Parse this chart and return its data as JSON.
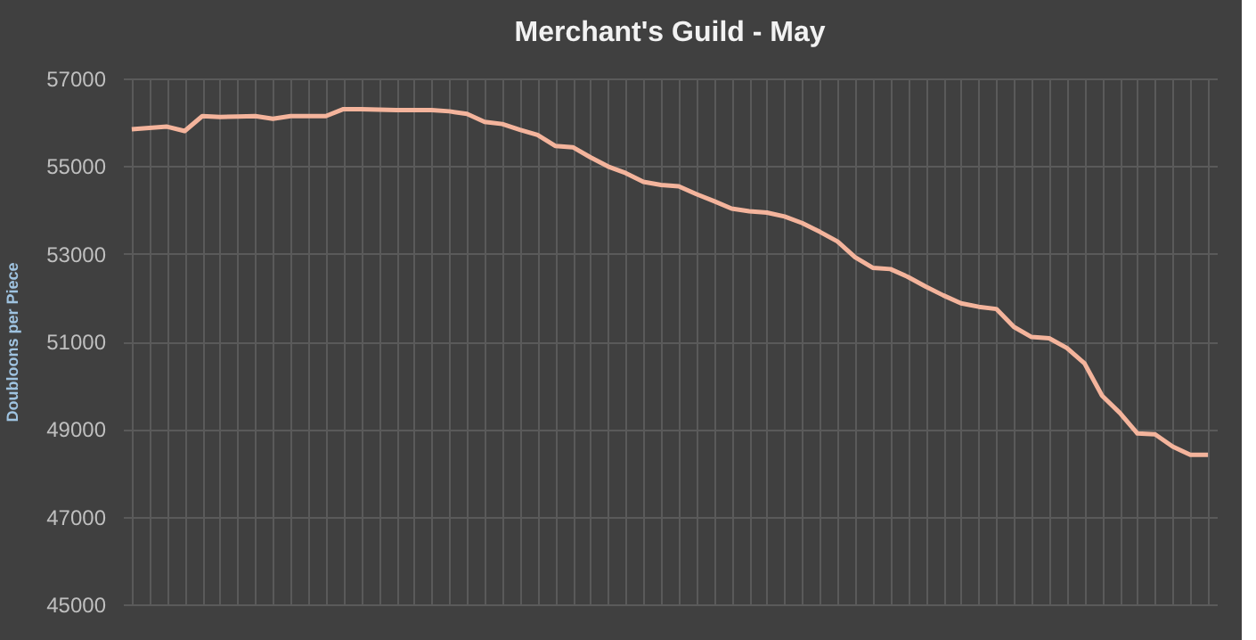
{
  "chart_data": {
    "type": "line",
    "title": "Merchant's Guild - May",
    "ylabel": "Doubloons  per Piece",
    "categories": [
      null,
      null,
      null,
      null,
      null,
      null,
      null,
      null,
      null,
      null,
      null,
      null,
      null,
      null,
      null,
      null,
      null,
      null,
      null,
      null,
      null,
      null,
      null,
      null,
      null,
      null,
      null,
      null,
      null,
      null,
      null,
      null,
      null,
      null,
      null,
      null,
      null,
      null,
      null,
      null,
      null,
      null,
      null,
      null,
      null,
      null,
      null,
      null,
      null,
      null,
      null,
      null,
      null,
      null,
      null,
      null,
      null,
      null,
      null,
      null,
      null,
      null
    ],
    "series": [
      {
        "color": "#f4b49c",
        "values": [
          55840,
          55870,
          55900,
          55800,
          56140,
          56120,
          56130,
          56140,
          56080,
          56140,
          56140,
          56140,
          56300,
          56300,
          56290,
          56280,
          56280,
          56280,
          56250,
          56190,
          56010,
          55960,
          55830,
          55710,
          55460,
          55430,
          55200,
          54990,
          54840,
          54640,
          54570,
          54540,
          54360,
          54200,
          54030,
          53970,
          53940,
          53850,
          53700,
          53500,
          53280,
          52920,
          52680,
          52650,
          52470,
          52250,
          52050,
          51870,
          51790,
          51740,
          51330,
          51100,
          51070,
          50850,
          50500,
          49760,
          49370,
          48900,
          48880,
          48600,
          48410,
          48410
        ]
      }
    ],
    "ylim": [
      45000,
      57000
    ],
    "yticks": [
      45000,
      47000,
      49000,
      51000,
      53000,
      55000,
      57000
    ],
    "grid": true,
    "tick_labels": "y",
    "legend": false,
    "marker": "none",
    "line_style": "solid"
  }
}
